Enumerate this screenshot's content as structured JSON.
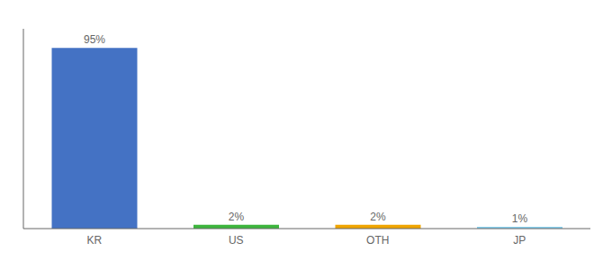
{
  "chart_data": {
    "type": "bar",
    "categories": [
      "KR",
      "US",
      "OTH",
      "JP"
    ],
    "values": [
      95,
      2,
      2,
      1
    ],
    "value_labels": [
      "95%",
      "2%",
      "2%",
      "1%"
    ],
    "colors": [
      "#4472c4",
      "#3db53d",
      "#f0a500",
      "#87ceeb"
    ],
    "ylim": [
      0,
      105
    ],
    "data_labels": true,
    "tick_labels": "x",
    "grid": false
  }
}
